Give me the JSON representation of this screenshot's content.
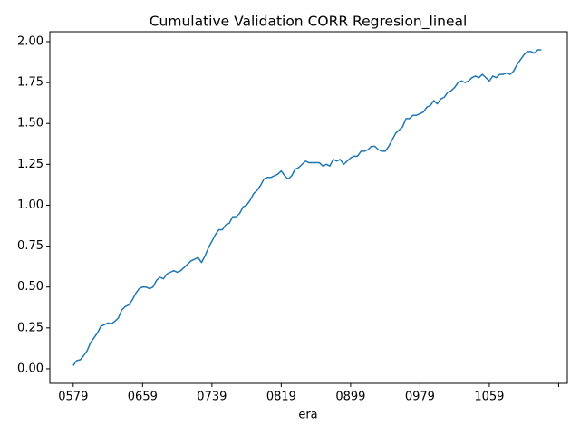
{
  "chart_data": {
    "type": "line",
    "title": "Cumulative Validation CORR Regresion_lineal",
    "x_label": "era",
    "x": [
      579,
      583,
      587,
      591,
      595,
      599,
      603,
      607,
      611,
      615,
      619,
      623,
      627,
      631,
      635,
      639,
      643,
      647,
      651,
      655,
      659,
      663,
      667,
      671,
      675,
      679,
      683,
      687,
      691,
      695,
      699,
      703,
      707,
      711,
      715,
      719,
      723,
      727,
      731,
      735,
      739,
      743,
      747,
      751,
      755,
      759,
      763,
      767,
      771,
      775,
      779,
      783,
      787,
      791,
      795,
      799,
      803,
      807,
      811,
      815,
      819,
      823,
      827,
      831,
      835,
      839,
      843,
      847,
      851,
      855,
      859,
      863,
      867,
      871,
      875,
      879,
      883,
      887,
      891,
      895,
      899,
      903,
      907,
      911,
      915,
      919,
      923,
      927,
      931,
      935,
      939,
      943,
      947,
      951,
      955,
      959,
      963,
      967,
      971,
      975,
      979,
      983,
      987,
      991,
      995,
      999,
      1003,
      1007,
      1011,
      1015,
      1019,
      1023,
      1027,
      1031,
      1035,
      1039,
      1043,
      1047,
      1051,
      1055,
      1059,
      1063,
      1067,
      1071,
      1075,
      1079,
      1083,
      1087,
      1091,
      1095,
      1099,
      1103,
      1107,
      1111,
      1115,
      1119
    ],
    "series": [
      {
        "color": "#1f77b4",
        "values": [
          0.02,
          0.05,
          0.055,
          0.08,
          0.11,
          0.16,
          0.19,
          0.22,
          0.26,
          0.27,
          0.28,
          0.275,
          0.29,
          0.31,
          0.36,
          0.38,
          0.39,
          0.42,
          0.46,
          0.49,
          0.5,
          0.5,
          0.49,
          0.5,
          0.54,
          0.56,
          0.55,
          0.58,
          0.59,
          0.6,
          0.59,
          0.6,
          0.62,
          0.64,
          0.66,
          0.67,
          0.68,
          0.65,
          0.69,
          0.74,
          0.78,
          0.82,
          0.85,
          0.85,
          0.88,
          0.89,
          0.93,
          0.93,
          0.95,
          0.99,
          1.0,
          1.03,
          1.07,
          1.09,
          1.12,
          1.16,
          1.17,
          1.17,
          1.18,
          1.19,
          1.21,
          1.18,
          1.16,
          1.18,
          1.22,
          1.23,
          1.25,
          1.27,
          1.26,
          1.26,
          1.26,
          1.26,
          1.24,
          1.25,
          1.24,
          1.28,
          1.27,
          1.28,
          1.25,
          1.27,
          1.29,
          1.3,
          1.3,
          1.33,
          1.33,
          1.34,
          1.36,
          1.36,
          1.34,
          1.33,
          1.33,
          1.36,
          1.4,
          1.44,
          1.46,
          1.48,
          1.53,
          1.53,
          1.55,
          1.55,
          1.56,
          1.57,
          1.6,
          1.61,
          1.64,
          1.62,
          1.65,
          1.66,
          1.69,
          1.7,
          1.72,
          1.75,
          1.76,
          1.75,
          1.76,
          1.78,
          1.79,
          1.78,
          1.8,
          1.78,
          1.76,
          1.79,
          1.78,
          1.8,
          1.8,
          1.81,
          1.8,
          1.82,
          1.86,
          1.89,
          1.92,
          1.94,
          1.94,
          1.93,
          1.95,
          1.95
        ]
      }
    ],
    "xlim": [
      552,
      1149
    ],
    "xticks": [
      {
        "value": 579,
        "label": "0579"
      },
      {
        "value": 659,
        "label": "0659"
      },
      {
        "value": 739,
        "label": "0739"
      },
      {
        "value": 819,
        "label": "0819"
      },
      {
        "value": 899,
        "label": "0899"
      },
      {
        "value": 979,
        "label": "0979"
      },
      {
        "value": 1059,
        "label": "1059"
      },
      {
        "value": 1139,
        "label": null
      }
    ],
    "ylim": [
      -0.089,
      2.061
    ],
    "yticks": [
      {
        "value": 0,
        "label": "0.00"
      },
      {
        "value": 0.25,
        "label": "0.25"
      },
      {
        "value": 0.5,
        "label": "0.50"
      },
      {
        "value": 0.75,
        "label": "0.75"
      },
      {
        "value": 1,
        "label": "1.00"
      },
      {
        "value": 1.25,
        "label": "1.25"
      },
      {
        "value": 1.5,
        "label": "1.50"
      },
      {
        "value": 1.75,
        "label": "1.75"
      },
      {
        "value": 2,
        "label": "2.00"
      }
    ]
  }
}
